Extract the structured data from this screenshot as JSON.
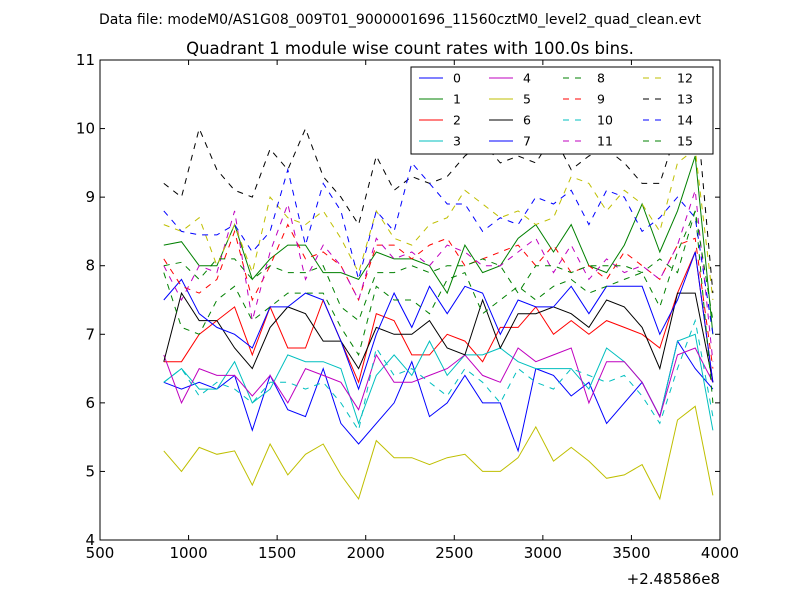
{
  "chart_data": {
    "type": "line",
    "suptitle": "Data file: modeM0/AS1G08_009T01_9000001696_11560cztM0_level2_quad_clean.evt",
    "title": "Quadrant 1 module wise count rates with 100.0s bins.",
    "xlabel": "",
    "ylabel": "",
    "x_offset_label": "+2.48586e8",
    "xlim": [
      500,
      4000
    ],
    "ylim": [
      4,
      11
    ],
    "x_ticks": [
      500,
      1000,
      1500,
      2000,
      2500,
      3000,
      3500,
      4000
    ],
    "x_tick_labels": [
      "500",
      "1000",
      "1500",
      "2000",
      "2500",
      "3000",
      "3500",
      "4000"
    ],
    "y_ticks": [
      4,
      5,
      6,
      7,
      8,
      9,
      10,
      11
    ],
    "y_tick_labels": [
      "4",
      "5",
      "6",
      "7",
      "8",
      "9",
      "10",
      "11"
    ],
    "legend_position": "top-right",
    "legend_columns": 4,
    "grid": false,
    "x": [
      860,
      960,
      1060,
      1160,
      1260,
      1360,
      1460,
      1560,
      1660,
      1760,
      1860,
      1960,
      2060,
      2160,
      2260,
      2360,
      2460,
      2560,
      2660,
      2760,
      2860,
      2960,
      3060,
      3160,
      3260,
      3360,
      3460,
      3560,
      3660,
      3760,
      3860,
      3960
    ],
    "series": [
      {
        "name": "0",
        "color": "#0000ff",
        "dash": "solid",
        "values": [
          6.3,
          6.2,
          6.3,
          6.2,
          6.4,
          5.6,
          6.4,
          5.9,
          5.8,
          6.5,
          5.7,
          5.4,
          5.7,
          6.0,
          6.6,
          5.8,
          6.0,
          6.4,
          6.0,
          6.0,
          5.3,
          6.5,
          6.4,
          6.1,
          6.3,
          5.7,
          6.0,
          6.3,
          5.8,
          6.9,
          6.5,
          6.2
        ]
      },
      {
        "name": "1",
        "color": "#008000",
        "dash": "solid",
        "values": [
          8.3,
          8.35,
          8.0,
          8.0,
          8.6,
          7.8,
          8.1,
          8.3,
          8.3,
          7.9,
          7.9,
          7.8,
          8.2,
          8.1,
          8.1,
          8.0,
          7.6,
          8.3,
          7.9,
          8.0,
          8.4,
          8.6,
          8.2,
          8.6,
          8.0,
          7.9,
          8.3,
          8.9,
          8.2,
          8.8,
          9.6,
          7.0
        ]
      },
      {
        "name": "2",
        "color": "#ff0000",
        "dash": "solid",
        "values": [
          6.6,
          6.6,
          7.0,
          7.2,
          7.4,
          6.7,
          7.4,
          6.8,
          6.8,
          7.5,
          6.9,
          6.3,
          7.3,
          7.2,
          6.7,
          6.7,
          7.0,
          6.9,
          6.6,
          7.1,
          7.1,
          7.4,
          7.0,
          7.2,
          7.0,
          7.2,
          7.1,
          7.0,
          6.8,
          7.6,
          8.2,
          6.3
        ]
      },
      {
        "name": "3",
        "color": "#00bfbf",
        "dash": "solid",
        "values": [
          6.3,
          6.5,
          6.2,
          6.2,
          6.6,
          6.0,
          6.2,
          6.7,
          6.6,
          6.6,
          6.5,
          5.7,
          6.4,
          6.7,
          6.4,
          6.9,
          6.4,
          6.7,
          6.7,
          6.8,
          6.6,
          6.5,
          6.5,
          6.5,
          6.2,
          6.8,
          6.6,
          6.3,
          5.8,
          6.9,
          7.0,
          5.6
        ]
      },
      {
        "name": "4",
        "color": "#bf00bf",
        "dash": "solid",
        "values": [
          6.7,
          6.0,
          6.5,
          6.4,
          6.4,
          6.1,
          6.4,
          6.0,
          6.5,
          6.4,
          6.3,
          5.9,
          6.7,
          6.3,
          6.3,
          6.4,
          6.5,
          6.7,
          6.4,
          6.3,
          6.8,
          6.6,
          6.7,
          6.8,
          6.0,
          6.6,
          6.6,
          6.3,
          5.8,
          6.7,
          6.8,
          6.3
        ]
      },
      {
        "name": "5",
        "color": "#bfbf00",
        "dash": "solid",
        "values": [
          5.3,
          5.0,
          5.35,
          5.25,
          5.3,
          4.8,
          5.4,
          4.95,
          5.25,
          5.4,
          4.95,
          4.6,
          5.45,
          5.2,
          5.2,
          5.1,
          5.2,
          5.25,
          5.0,
          5.0,
          5.2,
          5.65,
          5.15,
          5.35,
          5.15,
          4.9,
          4.95,
          5.1,
          4.6,
          5.75,
          5.95,
          4.65
        ]
      },
      {
        "name": "6",
        "color": "#000000",
        "dash": "solid",
        "values": [
          6.6,
          7.6,
          7.2,
          7.2,
          6.8,
          6.5,
          7.1,
          7.4,
          7.3,
          6.9,
          6.9,
          6.5,
          7.1,
          7.0,
          7.0,
          7.2,
          6.8,
          6.7,
          7.5,
          6.8,
          7.3,
          7.3,
          7.4,
          7.3,
          7.1,
          7.5,
          7.4,
          7.1,
          6.5,
          7.6,
          7.6,
          6.3
        ]
      },
      {
        "name": "7",
        "color": "#0000ff",
        "dash": "solid",
        "values": [
          7.5,
          7.8,
          7.3,
          7.1,
          7.0,
          6.8,
          7.4,
          7.4,
          7.6,
          7.5,
          6.9,
          6.2,
          7.0,
          7.6,
          7.1,
          7.7,
          7.3,
          7.7,
          7.6,
          7.0,
          7.5,
          7.4,
          7.4,
          7.7,
          7.3,
          7.7,
          7.7,
          7.7,
          7.0,
          7.5,
          8.2,
          6.3
        ]
      },
      {
        "name": "8",
        "color": "#008000",
        "dash": "dash",
        "values": [
          7.9,
          7.1,
          7.0,
          7.5,
          7.7,
          7.2,
          7.4,
          7.6,
          7.6,
          7.6,
          7.1,
          6.7,
          7.7,
          7.5,
          7.5,
          7.3,
          7.8,
          7.9,
          7.3,
          7.5,
          7.7,
          7.5,
          7.7,
          7.8,
          7.6,
          7.7,
          7.8,
          7.9,
          7.4,
          8.2,
          8.8,
          6.0
        ]
      },
      {
        "name": "9",
        "color": "#ff0000",
        "dash": "dash",
        "values": [
          8.1,
          7.7,
          7.6,
          7.8,
          8.5,
          7.5,
          8.0,
          8.6,
          8.1,
          8.2,
          8.0,
          7.5,
          8.3,
          8.3,
          8.1,
          8.3,
          8.4,
          8.0,
          8.1,
          8.2,
          8.3,
          8.0,
          8.3,
          7.9,
          8.0,
          7.8,
          8.2,
          8.0,
          7.8,
          8.3,
          8.4,
          6.5
        ]
      },
      {
        "name": "10",
        "color": "#00bfbf",
        "dash": "dash",
        "values": [
          6.3,
          6.5,
          6.1,
          6.3,
          6.2,
          6.0,
          6.3,
          6.3,
          6.2,
          6.3,
          6.0,
          5.6,
          6.8,
          6.4,
          6.5,
          6.3,
          6.1,
          6.5,
          6.3,
          6.0,
          6.5,
          6.3,
          6.2,
          6.5,
          6.4,
          6.3,
          6.4,
          6.1,
          5.7,
          6.5,
          7.2,
          5.8
        ]
      },
      {
        "name": "11",
        "color": "#bf00bf",
        "dash": "dash",
        "values": [
          8.0,
          7.5,
          8.0,
          7.9,
          8.8,
          7.2,
          8.2,
          8.9,
          7.8,
          8.3,
          8.0,
          7.5,
          8.4,
          8.1,
          8.2,
          8.0,
          8.3,
          8.2,
          8.0,
          8.0,
          8.2,
          8.4,
          7.9,
          8.3,
          7.8,
          8.1,
          7.9,
          8.0,
          7.8,
          8.3,
          9.1,
          6.6
        ]
      },
      {
        "name": "12",
        "color": "#bfbf00",
        "dash": "dash",
        "values": [
          8.6,
          8.5,
          8.7,
          8.0,
          8.6,
          7.9,
          9.0,
          8.7,
          8.6,
          8.8,
          8.4,
          7.9,
          8.8,
          8.4,
          8.3,
          8.6,
          8.7,
          9.1,
          8.9,
          8.7,
          8.8,
          8.6,
          8.7,
          9.3,
          9.2,
          8.8,
          9.1,
          8.9,
          8.5,
          9.5,
          9.7,
          7.5
        ]
      },
      {
        "name": "13",
        "color": "#000000",
        "dash": "dash",
        "values": [
          9.2,
          9.0,
          10.0,
          9.4,
          9.1,
          9.0,
          9.7,
          9.4,
          10.0,
          9.3,
          9.0,
          8.6,
          9.6,
          9.1,
          9.3,
          9.2,
          9.3,
          9.6,
          9.8,
          9.5,
          9.6,
          9.5,
          9.9,
          9.4,
          9.6,
          9.7,
          9.5,
          9.2,
          9.2,
          10.0,
          10.5,
          7.6
        ]
      },
      {
        "name": "14",
        "color": "#0000ff",
        "dash": "dash",
        "values": [
          8.8,
          8.5,
          8.45,
          8.45,
          8.6,
          8.2,
          8.5,
          9.4,
          8.3,
          9.2,
          8.8,
          7.8,
          8.8,
          8.5,
          9.5,
          9.2,
          8.9,
          8.9,
          8.5,
          8.7,
          8.6,
          9.0,
          8.9,
          9.1,
          8.6,
          9.1,
          9.0,
          8.5,
          8.7,
          9.0,
          8.7,
          7.0
        ]
      },
      {
        "name": "15",
        "color": "#008000",
        "dash": "dash",
        "values": [
          8.0,
          8.05,
          7.8,
          8.1,
          8.1,
          7.8,
          8.0,
          7.9,
          7.9,
          8.0,
          7.4,
          7.2,
          7.9,
          7.9,
          8.0,
          7.9,
          8.0,
          8.0,
          8.1,
          8.0,
          7.6,
          8.0,
          8.0,
          7.9,
          8.0,
          8.0,
          8.0,
          7.9,
          8.1,
          7.9,
          8.8,
          7.2
        ]
      }
    ]
  }
}
